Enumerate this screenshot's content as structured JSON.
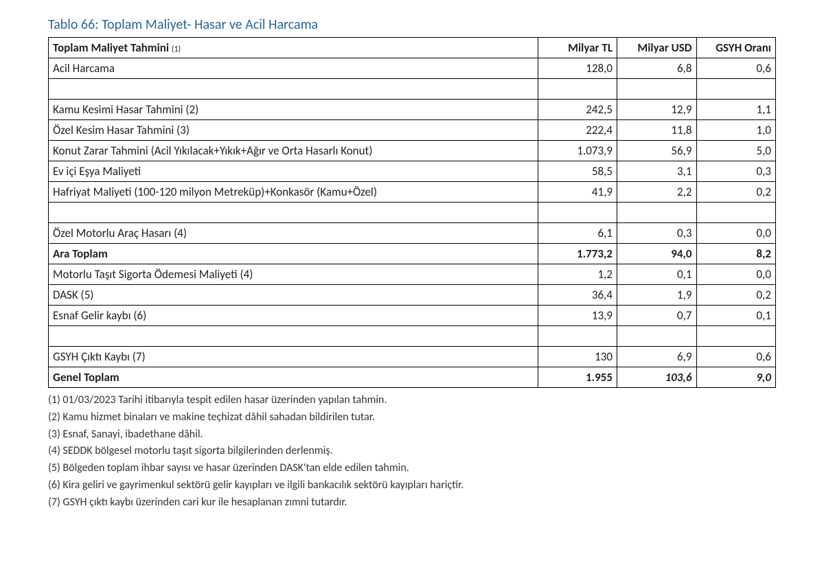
{
  "title": "Tablo 66: Toplam Maliyet- Hasar ve Acil Harcama",
  "columns": {
    "c0": "Toplam Maliyet Tahmini ",
    "c0_note": "(1)",
    "c1": "Milyar TL",
    "c2": "Milyar USD",
    "c3": "GSYH Oranı"
  },
  "rows": {
    "r0": {
      "label": "Acil Harcama",
      "tl": "128,0",
      "usd": "6,8",
      "gsyh": "0,6"
    },
    "r1": {
      "label": "",
      "tl": "",
      "usd": "",
      "gsyh": ""
    },
    "r2": {
      "label": "Kamu Kesimi Hasar Tahmini (2)",
      "tl": "242,5",
      "usd": "12,9",
      "gsyh": "1,1"
    },
    "r3": {
      "label": "Özel Kesim Hasar Tahmini (3)",
      "tl": "222,4",
      "usd": "11,8",
      "gsyh": "1,0"
    },
    "r4": {
      "label": "Konut Zarar Tahmini (Acil Yıkılacak+Yıkık+Ağır ve Orta Hasarlı Konut)",
      "tl": "1.073,9",
      "usd": "56,9",
      "gsyh": "5,0"
    },
    "r5": {
      "label": "Ev içi Eşya Maliyeti",
      "tl": "58,5",
      "usd": "3,1",
      "gsyh": "0,3"
    },
    "r6": {
      "label": "Hafriyat Maliyeti (100-120 milyon Metreküp)+Konkasör (Kamu+Özel)",
      "tl": "41,9",
      "usd": "2,2",
      "gsyh": "0,2"
    },
    "r7": {
      "label": "",
      "tl": "",
      "usd": "",
      "gsyh": ""
    },
    "r8": {
      "label": "Özel Motorlu Araç Hasarı (4)",
      "tl": "6,1",
      "usd": "0,3",
      "gsyh": "0,0"
    },
    "r9": {
      "label": "Ara Toplam",
      "tl": "1.773,2",
      "usd": "94,0",
      "gsyh": "8,2"
    },
    "r10": {
      "label": "Motorlu Taşıt Sigorta Ödemesi Maliyeti (4)",
      "tl": "1,2",
      "usd": "0,1",
      "gsyh": "0,0"
    },
    "r11": {
      "label": "DASK (5)",
      "tl": "36,4",
      "usd": "1,9",
      "gsyh": "0,2"
    },
    "r12": {
      "label": "Esnaf Gelir kaybı (6)",
      "tl": "13,9",
      "usd": "0,7",
      "gsyh": "0,1"
    },
    "r13": {
      "label": "",
      "tl": "",
      "usd": "",
      "gsyh": ""
    },
    "r14": {
      "label": "GSYH Çıktı Kaybı (7)",
      "tl": "130",
      "usd": "6,9",
      "gsyh": "0,6"
    },
    "r15": {
      "label": "Genel Toplam",
      "tl": "1.955",
      "usd": "103,6",
      "gsyh": "9,0"
    }
  },
  "footnotes": {
    "f1": "(1) 01/03/2023 Tarihi itibarıyla tespit edilen hasar üzerinden yapılan tahmin.",
    "f2": "(2) Kamu hizmet binaları ve makine teçhizat dâhil sahadan bildirilen tutar.",
    "f3": "(3) Esnaf, Sanayi,  ibadethane dâhil.",
    "f4": "(4) SEDDK bölgesel motorlu taşıt sigorta bilgilerinden derlenmiş.",
    "f5": "(5) Bölgeden toplam ihbar sayısı ve hasar üzerinden DASK'tan elde edilen tahmin.",
    "f6": "(6) Kira geliri ve gayrimenkul sektörü gelir kayıpları ve ilgili bankacılık sektörü kayıpları hariçtir.",
    "f7": "(7) GSYH çıktı kaybı üzerinden cari kur ile hesaplanan zımni tutardır."
  }
}
